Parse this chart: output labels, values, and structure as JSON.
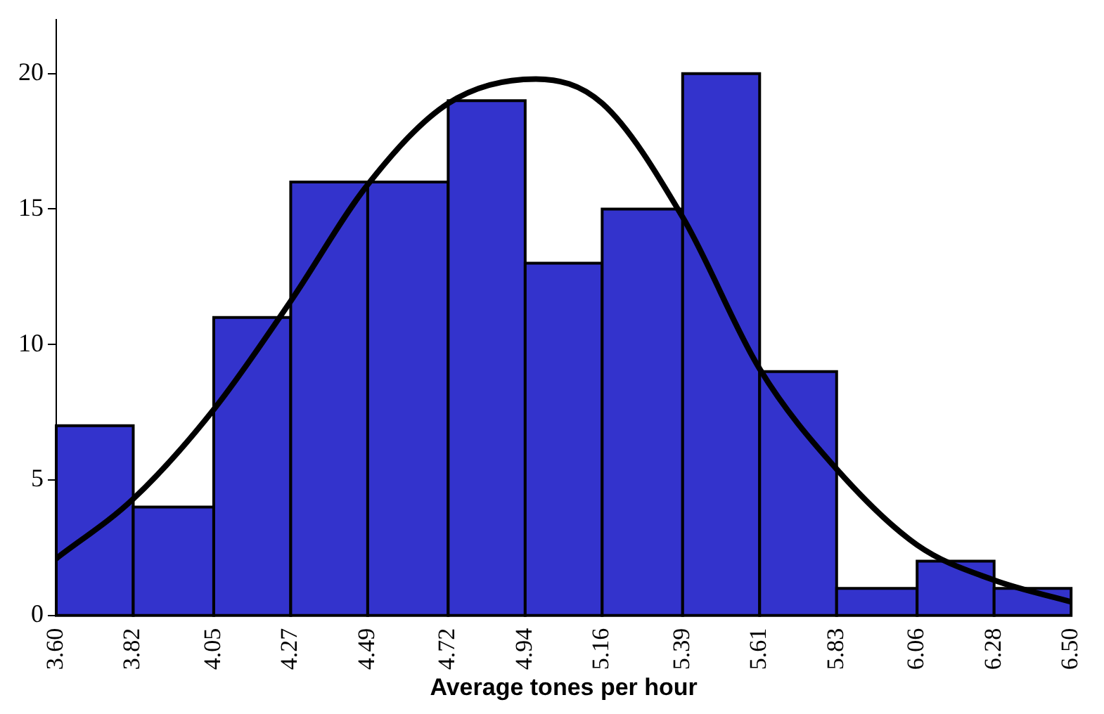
{
  "chart_data": {
    "type": "histogram",
    "xlabel": "Average tones per hour",
    "bins": [
      3.6,
      3.82,
      4.05,
      4.27,
      4.49,
      4.72,
      4.94,
      5.16,
      5.39,
      5.61,
      5.83,
      6.06,
      6.28,
      6.5
    ],
    "values": [
      7,
      4,
      11,
      16,
      16,
      19,
      13,
      15,
      20,
      9,
      1,
      2,
      1
    ],
    "color": "#3333cc",
    "series": [
      {
        "type": "line",
        "color": "#000000",
        "x": [
          3.6,
          3.82,
          4.05,
          4.27,
          4.49,
          4.72,
          4.97,
          5.16,
          5.39,
          5.61,
          5.83,
          6.06,
          6.28,
          6.5
        ],
        "values": [
          2.1,
          4.3,
          7.6,
          11.6,
          15.9,
          18.9,
          19.8,
          18.9,
          14.7,
          9.1,
          5.4,
          2.6,
          1.3,
          0.5
        ]
      }
    ],
    "xlim": [
      3.6,
      6.5
    ],
    "xticks": [
      {
        "value": 3.6,
        "label": "3.60"
      },
      {
        "value": 3.82,
        "label": "3.82"
      },
      {
        "value": 4.05,
        "label": "4.05"
      },
      {
        "value": 4.27,
        "label": "4.27"
      },
      {
        "value": 4.49,
        "label": "4.49"
      },
      {
        "value": 4.72,
        "label": "4.72"
      },
      {
        "value": 4.94,
        "label": "4.94"
      },
      {
        "value": 5.16,
        "label": "5.16"
      },
      {
        "value": 5.39,
        "label": "5.39"
      },
      {
        "value": 5.61,
        "label": "5.61"
      },
      {
        "value": 5.83,
        "label": "5.83"
      },
      {
        "value": 6.06,
        "label": "6.06"
      },
      {
        "value": 6.28,
        "label": "6.28"
      },
      {
        "value": 6.5,
        "label": "6.50"
      }
    ],
    "ylim": [
      0,
      22
    ],
    "yticks": [
      0,
      5,
      10,
      15,
      20
    ],
    "grid": false,
    "legend": false,
    "marker": "none",
    "line_style": "solid"
  }
}
